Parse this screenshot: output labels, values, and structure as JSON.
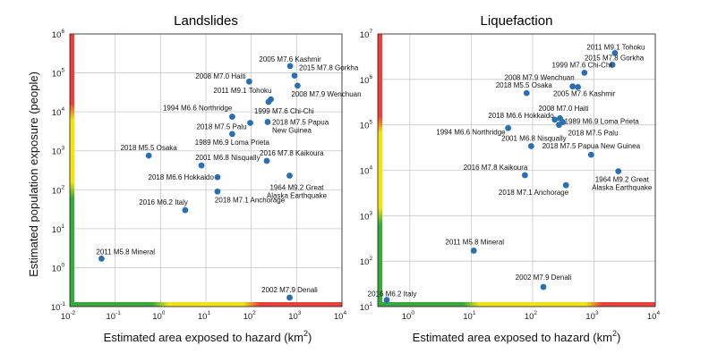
{
  "figure": {
    "ylabel": "Estimated population exposure (people)",
    "xlabel": "Estimated area exposed to hazard (km",
    "xlabel_sup": "2",
    "xlabel_end": ")"
  },
  "colors": {
    "point": "#2b6fae",
    "green": "#3aa83f",
    "yellow": "#f2e21c",
    "red": "#e8403a",
    "grid": "#c8c8c8"
  },
  "chart_data": [
    {
      "type": "scatter",
      "title": "Landslides",
      "xscale": "log",
      "yscale": "log",
      "xlim": [
        0.01,
        10000
      ],
      "ylim": [
        0.1,
        1000000
      ],
      "x_ticks": [
        {
          "exp": "-2"
        },
        {
          "exp": "-1"
        },
        {
          "exp": "0"
        },
        {
          "exp": "1"
        },
        {
          "exp": "2"
        },
        {
          "exp": "3"
        },
        {
          "exp": "4"
        }
      ],
      "y_ticks": [
        {
          "exp": "-1"
        },
        {
          "exp": "0"
        },
        {
          "exp": "1"
        },
        {
          "exp": "2"
        },
        {
          "exp": "3"
        },
        {
          "exp": "4"
        },
        {
          "exp": "5"
        },
        {
          "exp": "6"
        }
      ],
      "x_alert_bands": [
        [
          0.01,
          1,
          "green"
        ],
        [
          1,
          100,
          "yellow"
        ],
        [
          100,
          10000,
          "red"
        ]
      ],
      "y_alert_bands": [
        [
          0.1,
          100,
          "green"
        ],
        [
          100,
          10000,
          "yellow"
        ],
        [
          10000,
          1000000,
          "red"
        ]
      ],
      "points": [
        {
          "x": 720,
          "y": 150000,
          "label": [
            "2005 M7.6 Kashmir"
          ],
          "anchor": "middle",
          "dx": 0,
          "dy": -5
        },
        {
          "x": 90,
          "y": 60000,
          "label": [
            "2008 M7.0 Haiti"
          ],
          "anchor": "end",
          "dx": -4,
          "dy": -3
        },
        {
          "x": 900,
          "y": 85000,
          "label": [
            "2015 M7.8 Gorkha"
          ],
          "anchor": "start",
          "dx": 5,
          "dy": -6
        },
        {
          "x": 1050,
          "y": 47000,
          "label": [
            "2008 M7.9 Wenchuan"
          ],
          "anchor": "start",
          "dx": -7,
          "dy": 12
        },
        {
          "x": 270,
          "y": 21000,
          "label": [
            "2011 M9.1 Tohoku"
          ],
          "anchor": "end",
          "dx": 1,
          "dy": -7
        },
        {
          "x": 240,
          "y": 18000,
          "label": [
            "1999 M7.6 Chi-Chi"
          ],
          "anchor": "start",
          "dx": -16,
          "dy": 13
        },
        {
          "x": 38,
          "y": 7500,
          "label": [
            "1994 M6.6 Northridge"
          ],
          "anchor": "end",
          "dx": 0,
          "dy": -7
        },
        {
          "x": 95,
          "y": 5200,
          "label": [
            "2018 M7.5 Palu"
          ],
          "anchor": "end",
          "dx": -4,
          "dy": 7
        },
        {
          "x": 230,
          "y": 5500,
          "label": [
            "2018 M7.5 Papua",
            "New Guinea"
          ],
          "anchor": "start",
          "dx": 5,
          "dy": 3
        },
        {
          "x": 38,
          "y": 2700,
          "label": [
            "1989 M6.9 Loma Prieta"
          ],
          "anchor": "middle",
          "dx": 0,
          "dy": 12
        },
        {
          "x": 0.55,
          "y": 750,
          "label": [
            "2018 M5.5 Osaka"
          ],
          "anchor": "middle",
          "dx": 0,
          "dy": -6
        },
        {
          "x": 8,
          "y": 420,
          "label": [
            "2001 M6.8 Nisqually"
          ],
          "anchor": "start",
          "dx": -7,
          "dy": -6
        },
        {
          "x": 220,
          "y": 550,
          "label": [
            "2016 M7.8 Kaikoura"
          ],
          "anchor": "start",
          "dx": -8,
          "dy": -6
        },
        {
          "x": 18,
          "y": 210,
          "label": [
            "2018 M6.6 Hokkaido"
          ],
          "anchor": "end",
          "dx": -4,
          "dy": 3
        },
        {
          "x": 700,
          "y": 230,
          "label": [
            "1964 M9.2 Great",
            "Alaska Earthquake"
          ],
          "anchor": "middle",
          "dx": 8,
          "dy": 16
        },
        {
          "x": 18,
          "y": 90,
          "label": [
            "2018 M7.1 Anchorage"
          ],
          "anchor": "start",
          "dx": -3,
          "dy": 12
        },
        {
          "x": 3.5,
          "y": 30,
          "label": [
            "2016 M6.2 Italy"
          ],
          "anchor": "end",
          "dx": 3,
          "dy": -6
        },
        {
          "x": 0.05,
          "y": 1.7,
          "label": [
            "2011 M5.8 Mineral"
          ],
          "anchor": "start",
          "dx": -6,
          "dy": -5
        },
        {
          "x": 700,
          "y": 0.17,
          "label": [
            "2002 M7.9 Denali"
          ],
          "anchor": "middle",
          "dx": 0,
          "dy": -6
        }
      ]
    },
    {
      "type": "scatter",
      "title": "Liquefaction",
      "xscale": "log",
      "yscale": "log",
      "xlim": [
        0.3,
        10000
      ],
      "ylim": [
        10,
        10000000
      ],
      "x_ticks": [
        {
          "exp": "0"
        },
        {
          "exp": "1"
        },
        {
          "exp": "2"
        },
        {
          "exp": "3"
        },
        {
          "exp": "4"
        }
      ],
      "y_ticks": [
        {
          "exp": "1"
        },
        {
          "exp": "2"
        },
        {
          "exp": "3"
        },
        {
          "exp": "4"
        },
        {
          "exp": "5"
        },
        {
          "exp": "6"
        },
        {
          "exp": "7"
        }
      ],
      "x_alert_bands": [
        [
          0.3,
          10,
          "green"
        ],
        [
          10,
          1000,
          "yellow"
        ],
        [
          1000,
          10000,
          "red"
        ]
      ],
      "y_alert_bands": [
        [
          10,
          1000,
          "green"
        ],
        [
          1000,
          100000,
          "yellow"
        ],
        [
          100000,
          10000000,
          "red"
        ]
      ],
      "points": [
        {
          "x": 2200,
          "y": 3800000,
          "label": [
            "2011 M9.1 Tohoku"
          ],
          "anchor": "middle",
          "dx": 1,
          "dy": -4
        },
        {
          "x": 2000,
          "y": 2100000,
          "label": [
            "2015 M7.8 Gorkha"
          ],
          "anchor": "middle",
          "dx": 2,
          "dy": -5
        },
        {
          "x": 700,
          "y": 1400000,
          "label": [
            "1999 M7.6 Chi-Chi"
          ],
          "anchor": "middle",
          "dx": -3,
          "dy": -6
        },
        {
          "x": 450,
          "y": 700000,
          "label": [
            "2008 M7.9 Wenchuan"
          ],
          "anchor": "end",
          "dx": 2,
          "dy": -7
        },
        {
          "x": 550,
          "y": 680000,
          "label": [
            "2005 M7.6 Kashmir"
          ],
          "anchor": "middle",
          "dx": 7,
          "dy": 10
        },
        {
          "x": 80,
          "y": 500000,
          "label": [
            "2018 M5.5 Osaka"
          ],
          "anchor": "middle",
          "dx": -3,
          "dy": -6
        },
        {
          "x": 280,
          "y": 140000,
          "label": [
            "2008 M7.0 Haiti"
          ],
          "anchor": "middle",
          "dx": 4,
          "dy": -8
        },
        {
          "x": 230,
          "y": 130000,
          "label": [
            "2018 M6.6 Hokkaido"
          ],
          "anchor": "end",
          "dx": -1,
          "dy": -2
        },
        {
          "x": 310,
          "y": 115000,
          "label": [
            "1989 M6.9 Loma Prieta"
          ],
          "anchor": "start",
          "dx": 2,
          "dy": 2
        },
        {
          "x": 270,
          "y": 100000,
          "label": [
            "2018 M7.5 Palu"
          ],
          "anchor": "start",
          "dx": 10,
          "dy": 12
        },
        {
          "x": 40,
          "y": 85000,
          "label": [
            "1994 M6.6 Northridge"
          ],
          "anchor": "end",
          "dx": -3,
          "dy": 7
        },
        {
          "x": 95,
          "y": 34000,
          "label": [
            "2001 M6.8 Nisqually"
          ],
          "anchor": "middle",
          "dx": 3,
          "dy": -6
        },
        {
          "x": 900,
          "y": 22000,
          "label": [
            "2018 M7.5 Papua New Guinea"
          ],
          "anchor": "middle",
          "dx": 0,
          "dy": -7
        },
        {
          "x": 2500,
          "y": 9500,
          "label": [
            "1964 M9.2 Great",
            "Alaska Earthquake"
          ],
          "anchor": "middle",
          "dx": 4,
          "dy": 12
        },
        {
          "x": 75,
          "y": 7800,
          "label": [
            "2016 M7.8 Kaikoura"
          ],
          "anchor": "end",
          "dx": 3,
          "dy": -6
        },
        {
          "x": 350,
          "y": 4700,
          "label": [
            "2018 M7.1 Anchorage"
          ],
          "anchor": "end",
          "dx": 3,
          "dy": 11
        },
        {
          "x": 11,
          "y": 170,
          "label": [
            "2011 M5.8 Mineral"
          ],
          "anchor": "middle",
          "dx": 1,
          "dy": -7
        },
        {
          "x": 150,
          "y": 27,
          "label": [
            "2002 M7.9 Denali"
          ],
          "anchor": "middle",
          "dx": 0,
          "dy": -8
        },
        {
          "x": 0.42,
          "y": 14,
          "label": [
            "2016 M6.2 Italy"
          ],
          "anchor": "middle",
          "dx": 6,
          "dy": -4
        }
      ]
    }
  ]
}
